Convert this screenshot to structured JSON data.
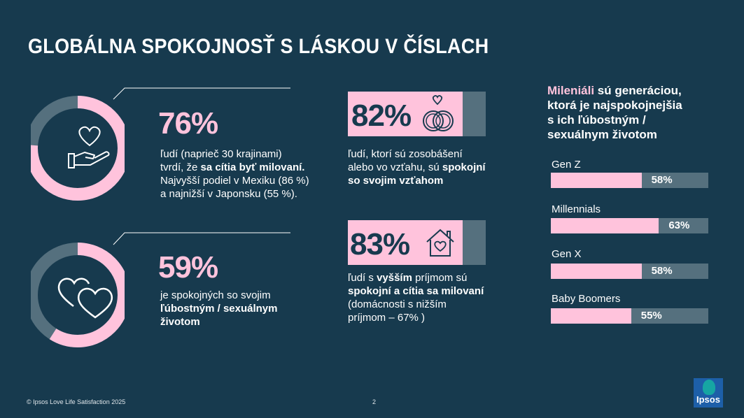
{
  "title": "GLOBÁLNA SPOKOJNOSŤ S LÁSKOU V ČÍSLACH",
  "stat1": {
    "percent": "76%",
    "value": 76,
    "line1": "ľudí (naprieč 30 krajinami)",
    "line2a": "tvrdí, že ",
    "line2b": "sa cítia byť milovaní.",
    "line3": "Najvyšší podiel v Mexiku (86 %)",
    "line4": "a najnižší v Japonsku (55 %)."
  },
  "stat2": {
    "percent": "59%",
    "value": 59,
    "line1": "je spokojných so svojim",
    "line2": "ľúbostným / sexuálnym",
    "line3": "životom"
  },
  "stat3": {
    "percent": "82%",
    "line1": "ľudí, ktorí sú zosobášení",
    "line2a": "alebo vo vzťahu, sú ",
    "line2b": "spokojní",
    "line3": "so svojim vzťahom"
  },
  "stat4": {
    "percent": "83%",
    "line1a": "ľudí s ",
    "line1b": "vyšším",
    "line1c": " príjmom sú",
    "line2": "spokojní a cítia sa milovaní",
    "line3": "(domácnosti s nižším",
    "line4": "príjmom – 67% )"
  },
  "millennials_heading": {
    "highlight": "Mileniáli",
    "rest1": " sú generáciou,",
    "line2": "ktorá je najspokojnejšia",
    "line3": "s ich ľúbostným /",
    "line4": "sexuálnym životom"
  },
  "generations": [
    {
      "label": "Gen Z",
      "value": 58,
      "display": "58%"
    },
    {
      "label": "Millennials",
      "value": 63,
      "display": "63%"
    },
    {
      "label": "Gen X",
      "value": 58,
      "display": "58%"
    },
    {
      "label": "Baby Boomers",
      "value": 55,
      "display": "55%"
    }
  ],
  "footer": {
    "copyright": "© Ipsos Love Life Satisfaction 2025",
    "page": "2",
    "logo": "Ipsos"
  },
  "colors": {
    "background": "#173a4e",
    "pink": "#ffc3dc",
    "gray": "#55707e",
    "logo_blue": "#1d5fa8",
    "logo_teal": "#16a6a3"
  },
  "icons": [
    "heart-in-hand-icon",
    "two-hearts-icon",
    "rings-icon",
    "house-heart-icon"
  ]
}
